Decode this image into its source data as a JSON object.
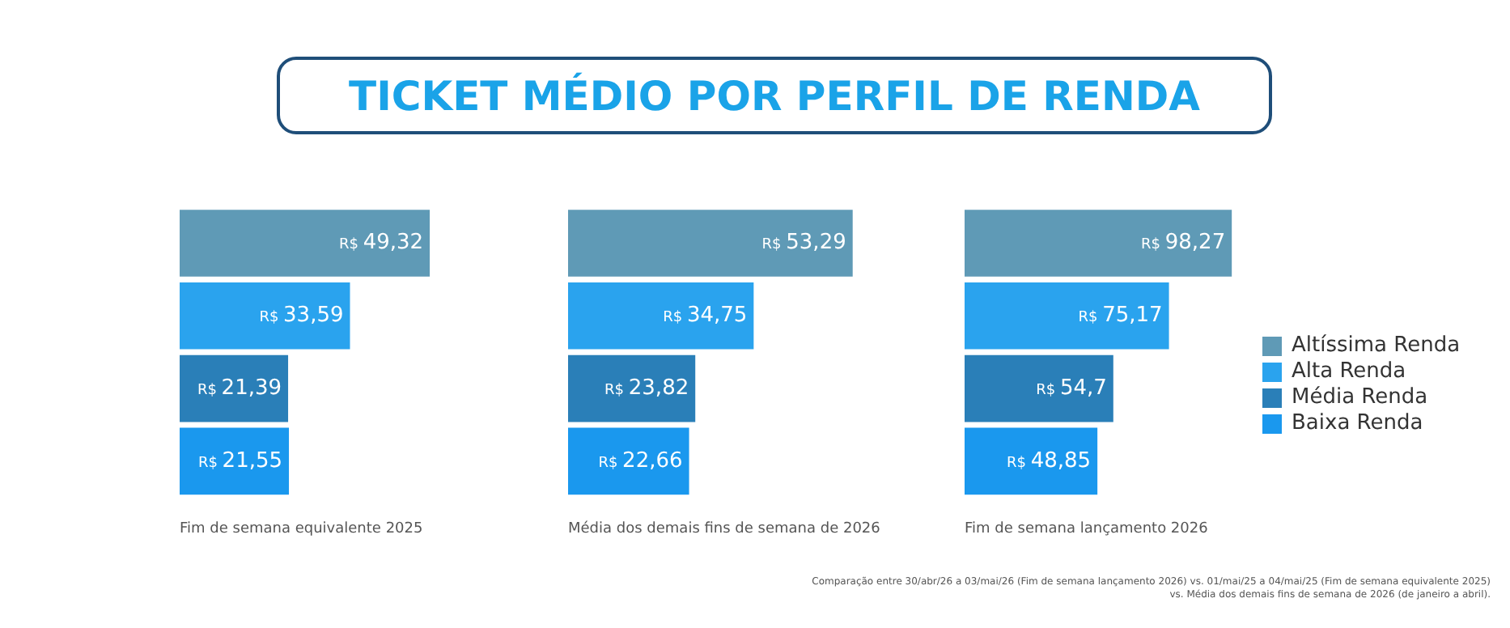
{
  "chart_data": [
    {
      "type": "bar",
      "orientation": "horizontal",
      "title": "TICKET MÉDIO POR PERFIL DE RENDA",
      "xlabel": "Fim de semana equivalente 2025",
      "categories": [
        null
      ],
      "series": [
        {
          "color": "#5f9ab6",
          "values": [
            49.32
          ],
          "value_labels": [
            "R$ 49,32"
          ]
        },
        {
          "color": "#2aa3ee",
          "values": [
            33.59
          ],
          "value_labels": [
            "R$ 33,59"
          ]
        },
        {
          "color": "#2a7fb8",
          "values": [
            21.39
          ],
          "value_labels": [
            "R$ 21,39"
          ]
        },
        {
          "color": "#1a98ee",
          "values": [
            21.55
          ],
          "value_labels": [
            "R$ 21,55"
          ]
        }
      ]
    },
    {
      "type": "bar",
      "orientation": "horizontal",
      "xlabel": "Média dos demais fins de semana de 2026",
      "categories": [
        null
      ],
      "series": [
        {
          "color": "#5f9ab6",
          "values": [
            53.29
          ],
          "value_labels": [
            "R$ 53,29"
          ]
        },
        {
          "color": "#2aa3ee",
          "values": [
            34.75
          ],
          "value_labels": [
            "R$ 34,75"
          ]
        },
        {
          "color": "#2a7fb8",
          "values": [
            23.82
          ],
          "value_labels": [
            "R$ 23,82"
          ]
        },
        {
          "color": "#1a98ee",
          "values": [
            22.66
          ],
          "value_labels": [
            "R$ 22,66"
          ]
        }
      ]
    },
    {
      "type": "bar",
      "orientation": "horizontal",
      "xlabel": "Fim de semana lançamento 2026",
      "categories": [
        null
      ],
      "legend": "right",
      "annotations": [
        "Comparação entre 30/abr/26 a 03/mai/26 (Fim de semana lançamento 2026) vs. 01/mai/25 a 04/mai/25 (Fim de semana equivalente 2025) vs. Média dos demais fins de semana de 2026 (de janeiro a abril)."
      ],
      "series": [
        {
          "name": "Altíssima Renda",
          "color": "#5f9ab6",
          "values": [
            98.27
          ],
          "value_labels": [
            "R$ 98,27"
          ]
        },
        {
          "name": "Alta Renda",
          "color": "#2aa3ee",
          "values": [
            75.17
          ],
          "value_labels": [
            "R$ 75,17"
          ]
        },
        {
          "name": "Média Renda",
          "color": "#2a7fb8",
          "values": [
            54.7
          ],
          "value_labels": [
            "R$ 54,7"
          ]
        },
        {
          "name": "Baixa Renda",
          "color": "#1a98ee",
          "values": [
            48.85
          ],
          "value_labels": [
            "R$ 48,85"
          ]
        }
      ]
    }
  ]
}
